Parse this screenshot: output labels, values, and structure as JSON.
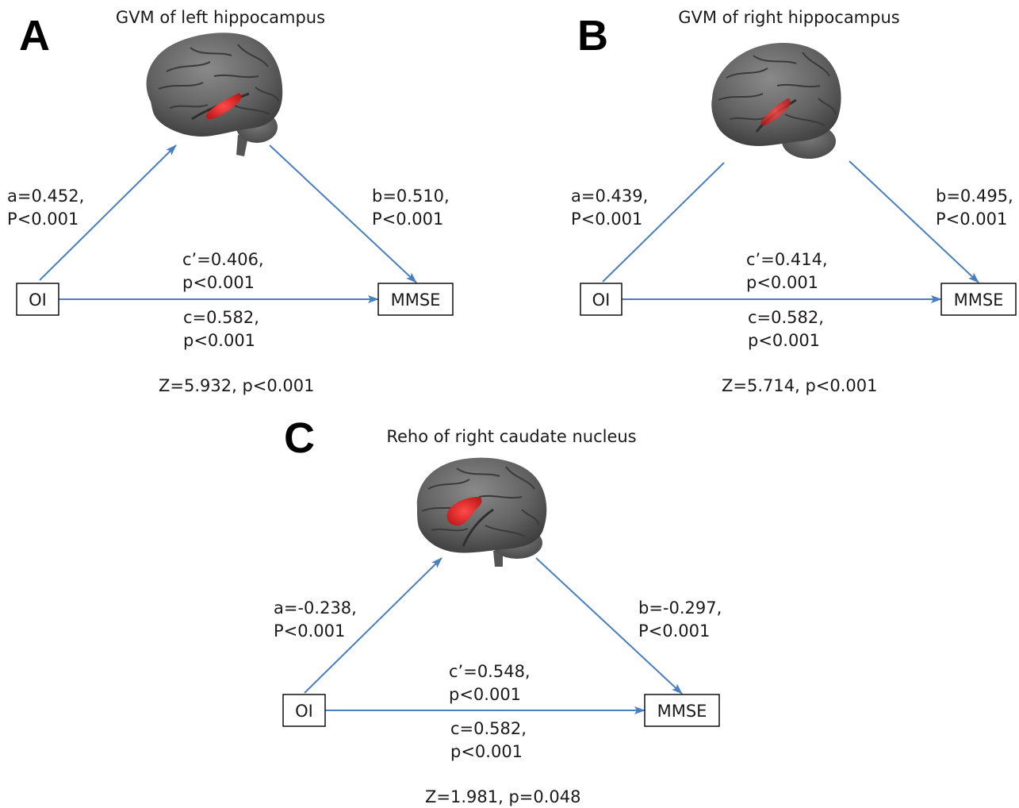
{
  "colors": {
    "arrow": "#4a7fbf",
    "brain": "#6e6e6e",
    "brain_dark": "#3f3f3f",
    "highlight": "#e02020"
  },
  "panels": [
    {
      "letter": "A",
      "title": "GVM of left hippocampus",
      "x_node": "OI",
      "y_node": "MMSE",
      "path_a": {
        "coef": "a=0.452,",
        "p": "P<0.001"
      },
      "path_b": {
        "coef": "b=0.510,",
        "p": "P<0.001"
      },
      "path_c_prime": {
        "coef": "c’=0.406,",
        "p": "p<0.001"
      },
      "path_c": {
        "coef": "c=0.582,",
        "p": "p<0.001"
      },
      "z_test": "Z=5.932, p<0.001",
      "brain_icon": "brain-left-lateral-icon"
    },
    {
      "letter": "B",
      "title": "GVM of right hippocampus",
      "x_node": "OI",
      "y_node": "MMSE",
      "path_a": {
        "coef": "a=0.439,",
        "p": "P<0.001"
      },
      "path_b": {
        "coef": "b=0.495,",
        "p": "P<0.001"
      },
      "path_c_prime": {
        "coef": "c’=0.414,",
        "p": "p<0.001"
      },
      "path_c": {
        "coef": "c=0.582,",
        "p": "p<0.001"
      },
      "z_test": "Z=5.714, p<0.001",
      "brain_icon": "brain-right-lateral-icon"
    },
    {
      "letter": "C",
      "title": "Reho of right caudate nucleus",
      "x_node": "OI",
      "y_node": "MMSE",
      "path_a": {
        "coef": "a=-0.238,",
        "p": "P<0.001"
      },
      "path_b": {
        "coef": "b=-0.297,",
        "p": "P<0.001"
      },
      "path_c_prime": {
        "coef": "c’=0.548,",
        "p": "p<0.001"
      },
      "path_c": {
        "coef": "c=0.582,",
        "p": "p<0.001"
      },
      "z_test": "Z=1.981, p=0.048",
      "brain_icon": "brain-right-lateral-icon"
    }
  ]
}
